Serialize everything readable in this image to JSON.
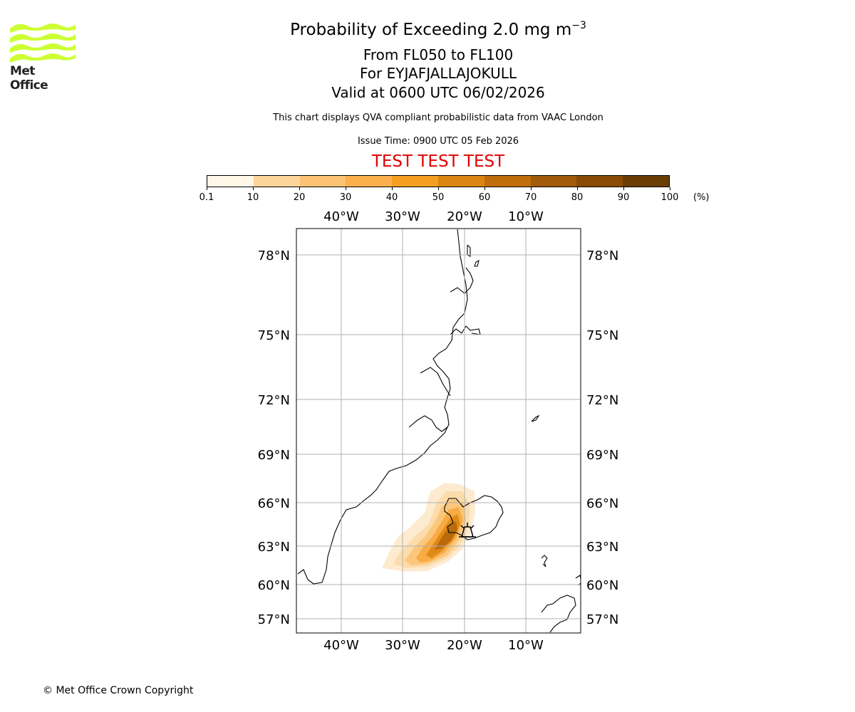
{
  "logo": {
    "text": "Met Office",
    "colors": {
      "waves": "#ccff33",
      "text": "#222222"
    }
  },
  "header": {
    "title": "Probability of Exceeding 2.0 mg m",
    "title_exponent": "−3",
    "flight_levels": "From FL050 to FL100",
    "volcano": "For EYJAFJALLAJOKULL",
    "valid_time": "Valid at 0600 UTC 06/02/2026",
    "description": "This chart displays QVA compliant probabilistic data from VAAC London",
    "issue_time": "Issue Time: 0900 UTC 05 Feb 2026",
    "test_banner": "TEST TEST TEST"
  },
  "colorbar": {
    "ticks": [
      "0.1",
      "10",
      "20",
      "30",
      "40",
      "50",
      "60",
      "70",
      "80",
      "90",
      "100"
    ],
    "units": "(%)",
    "colors": [
      "#fff7e8",
      "#fde7c3",
      "#fdd59a",
      "#fcc374",
      "#fbb04c",
      "#f59f21",
      "#db8512",
      "#c06d0c",
      "#a25b0b",
      "#8a4b06",
      "#6b3e08"
    ]
  },
  "map": {
    "lon_labels": [
      "40°W",
      "30°W",
      "20°W",
      "10°W"
    ],
    "lat_labels": [
      "78°N",
      "75°N",
      "72°N",
      "69°N",
      "66°N",
      "63°N",
      "60°N",
      "57°N"
    ],
    "volcano_marker": "volcano-icon",
    "gridline_color": "#b0b0b0"
  },
  "footer": {
    "copyright": "© Met Office Crown Copyright"
  }
}
